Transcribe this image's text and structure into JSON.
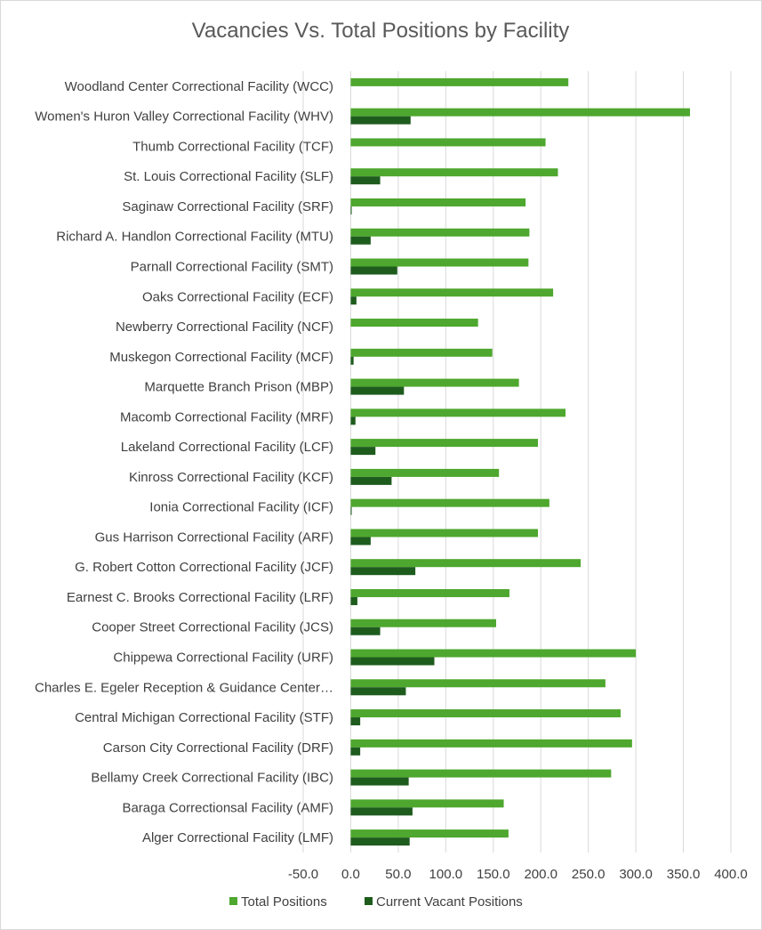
{
  "chart_data": {
    "type": "bar",
    "orientation": "horizontal",
    "title": "Vacancies Vs. Total Positions by Facility",
    "categories": [
      "Woodland Center Correctional Facility (WCC)",
      "Women's Huron Valley Correctional Facility (WHV)",
      "Thumb Correctional Facility (TCF)",
      "St. Louis Correctional Facility (SLF)",
      "Saginaw Correctional Facility (SRF)",
      "Richard A. Handlon Correctional Facility (MTU)",
      "Parnall Correctional Facility (SMT)",
      "Oaks Correctional Facility (ECF)",
      "Newberry Correctional Facility (NCF)",
      "Muskegon Correctional Facility (MCF)",
      "Marquette Branch Prison (MBP)",
      "Macomb Correctional Facility (MRF)",
      "Lakeland Correctional Facility (LCF)",
      "Kinross Correctional Facility (KCF)",
      "Ionia Correctional Facility (ICF)",
      "Gus Harrison Correctional Facility (ARF)",
      "G. Robert Cotton Correctional Facility (JCF)",
      "Earnest C. Brooks Correctional Facility (LRF)",
      "Cooper Street Correctional Facility (JCS)",
      "Chippewa Correctional Facility (URF)",
      "Charles E. Egeler Reception & Guidance Center…",
      "Central Michigan Correctional Facility (STF)",
      "Carson City Correctional Facility (DRF)",
      "Bellamy Creek Correctional Facility (IBC)",
      "Baraga Correctionsal Facility (AMF)",
      "Alger Correctional Facility (LMF)"
    ],
    "series": [
      {
        "name": "Total Positions",
        "color": "#4ea72e",
        "values": [
          229,
          357,
          205,
          218,
          184,
          188,
          187,
          213,
          134,
          149,
          177,
          226,
          197,
          156,
          209,
          197,
          242,
          167,
          153,
          300,
          268,
          284,
          296,
          274,
          161,
          166
        ]
      },
      {
        "name": "Current Vacant Positions",
        "color": "#1e5c1e",
        "values": [
          0,
          63,
          0,
          31,
          1,
          21,
          49,
          6,
          0,
          3,
          56,
          5,
          26,
          43,
          1,
          21,
          68,
          7,
          31,
          88,
          58,
          10,
          10,
          61,
          65,
          62
        ]
      }
    ],
    "xlim": [
      -50,
      400
    ],
    "xticks": [
      "-50.0",
      "0.0",
      "50.0",
      "100.0",
      "150.0",
      "200.0",
      "250.0",
      "300.0",
      "350.0",
      "400.0"
    ],
    "grid": true,
    "legend_position": "bottom"
  }
}
